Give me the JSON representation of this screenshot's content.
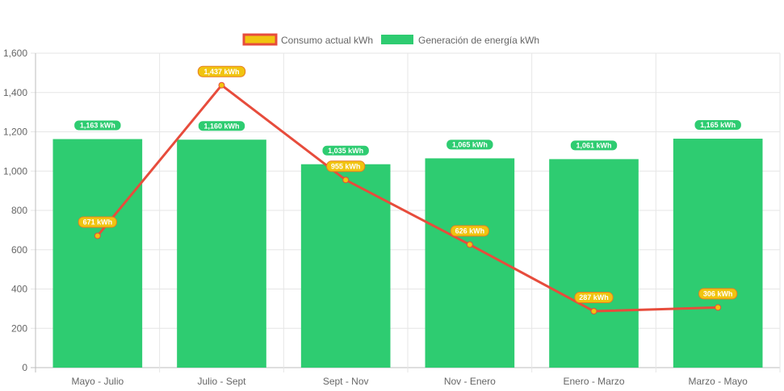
{
  "chart_data": {
    "type": "bar",
    "categories": [
      "Mayo - Julio",
      "Julio - Sept",
      "Sept - Nov",
      "Nov - Enero",
      "Enero - Marzo",
      "Marzo - Mayo"
    ],
    "series": [
      {
        "name": "Consumo actual kWh",
        "type": "line",
        "values": [
          671,
          1437,
          955,
          626,
          287,
          306
        ],
        "labels": [
          "671 kWh",
          "1,437 kWh",
          "955 kWh",
          "626 kWh",
          "287 kWh",
          "306 kWh"
        ],
        "color": "#e74c3c",
        "fill": "#f1c40f"
      },
      {
        "name": "Generación de energía kWh",
        "type": "bar",
        "values": [
          1163,
          1160,
          1035,
          1065,
          1061,
          1165
        ],
        "labels": [
          "1,163 kWh",
          "1,160 kWh",
          "1,035 kWh",
          "1,065 kWh",
          "1,061 kWh",
          "1,165 kWh"
        ],
        "color": "#2ecc71"
      }
    ],
    "ylim": [
      0,
      1600
    ],
    "yticks": [
      "0",
      "200",
      "400",
      "600",
      "800",
      "1,000",
      "1,200",
      "1,400",
      "1,600"
    ],
    "legend": "top-center",
    "grid": true
  }
}
